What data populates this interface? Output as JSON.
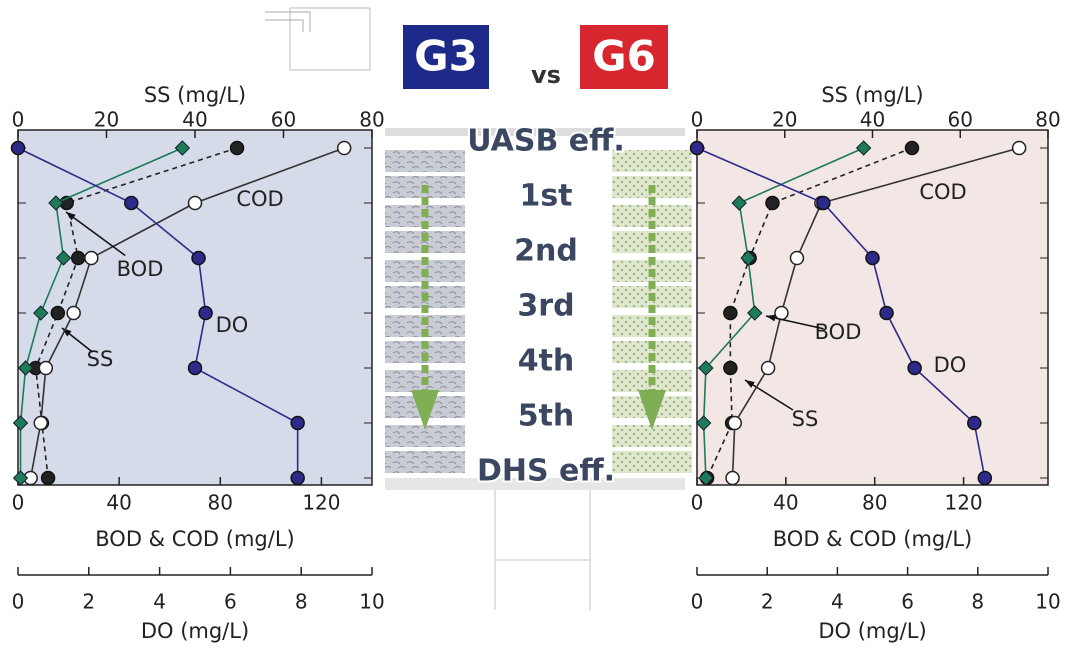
{
  "header": {
    "left": "G3",
    "middle": "vs",
    "right": "G6"
  },
  "stages": [
    "UASB eff.",
    "1st",
    "2nd",
    "3rd",
    "4th",
    "5th",
    "DHS eff."
  ],
  "chart_data": [
    {
      "type": "line",
      "axes": [
        {
          "label": "SS (mg/L)",
          "position": "top",
          "lim": [
            0,
            80
          ],
          "ticks": [
            0,
            20,
            40,
            60,
            80
          ]
        },
        {
          "label": "BOD & COD (mg/L)",
          "position": "bottom",
          "lim": [
            0,
            140
          ],
          "ticks": [
            0,
            40,
            80,
            120
          ]
        },
        {
          "label": "DO (mg/L)",
          "position": "lower",
          "lim": [
            0,
            10
          ],
          "ticks": [
            0,
            2,
            4,
            6,
            8,
            10
          ]
        }
      ],
      "background": "#d6dbe9",
      "series": [
        {
          "name": "SS",
          "axis": 0,
          "color": "#222222",
          "marker": "circle",
          "dashed": true,
          "values": [
            49.5,
            11,
            13.6,
            9,
            4,
            5.4,
            6.8
          ]
        },
        {
          "name": "COD",
          "axis": 1,
          "color": "#333333",
          "marker": "circle-open",
          "dashed": false,
          "values": [
            129,
            70,
            29,
            22,
            11,
            9,
            5
          ]
        },
        {
          "name": "BOD",
          "axis": 1,
          "color": "#1f7a58",
          "marker": "diamond",
          "dashed": false,
          "values": [
            65,
            15,
            18,
            9,
            3,
            1,
            1
          ]
        },
        {
          "name": "DO",
          "axis": 2,
          "color": "#2e2a8c",
          "marker": "circle",
          "dashed": false,
          "values": [
            0,
            3.2,
            5.1,
            5.3,
            5.0,
            7.9,
            7.9
          ]
        }
      ]
    },
    {
      "type": "line",
      "axes": [
        {
          "label": "SS (mg/L)",
          "position": "top",
          "lim": [
            0,
            80
          ],
          "ticks": [
            0,
            20,
            40,
            60,
            80
          ]
        },
        {
          "label": "BOD & COD (mg/L)",
          "position": "bottom",
          "lim": [
            0,
            158
          ],
          "ticks": [
            0,
            40,
            80,
            120
          ]
        },
        {
          "label": "DO (mg/L)",
          "position": "lower",
          "lim": [
            0,
            10
          ],
          "ticks": [
            0,
            2,
            4,
            6,
            8,
            10
          ]
        }
      ],
      "background": "#f2e7e4",
      "series": [
        {
          "name": "SS",
          "axis": 0,
          "color": "#222222",
          "marker": "circle",
          "dashed": true,
          "values": [
            49,
            17.2,
            12,
            7.6,
            7.6,
            8,
            2.3
          ]
        },
        {
          "name": "COD",
          "axis": 1,
          "color": "#333333",
          "marker": "circle-open",
          "dashed": false,
          "values": [
            145,
            56,
            45,
            38,
            32,
            17,
            16
          ]
        },
        {
          "name": "BOD",
          "axis": 1,
          "color": "#1f7a58",
          "marker": "diamond",
          "dashed": false,
          "values": [
            75,
            19,
            23,
            26,
            4,
            3,
            4
          ]
        },
        {
          "name": "DO",
          "axis": 2,
          "color": "#2e2a8c",
          "marker": "circle",
          "dashed": false,
          "values": [
            0,
            3.6,
            5.0,
            5.4,
            6.2,
            7.9,
            8.2
          ]
        }
      ]
    }
  ]
}
